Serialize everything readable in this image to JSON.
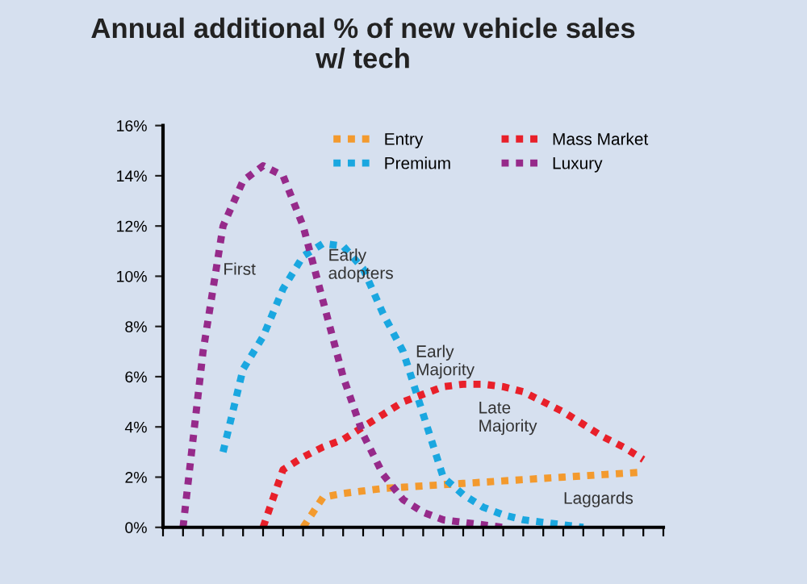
{
  "chart_data": {
    "type": "line",
    "title": "Annual additional % of new vehicle sales\nw/ tech",
    "categories": [
      null,
      null,
      null,
      null,
      null,
      null,
      null,
      null,
      null,
      null,
      null,
      null,
      null,
      null,
      null,
      null,
      null,
      null,
      null,
      null,
      null,
      null,
      null,
      null,
      null,
      null
    ],
    "series": [
      {
        "name": "Entry",
        "color": "#f39a2e",
        "values": [
          null,
          null,
          null,
          null,
          null,
          null,
          null,
          0,
          1.2,
          1.35,
          1.45,
          1.55,
          1.6,
          1.65,
          1.7,
          1.75,
          1.8,
          1.85,
          1.9,
          1.95,
          2.0,
          2.05,
          2.1,
          2.15,
          2.2,
          null
        ]
      },
      {
        "name": "Premium",
        "color": "#1aa7e0",
        "values": [
          null,
          null,
          null,
          3,
          6.3,
          7.6,
          9.5,
          10.8,
          11.3,
          11.2,
          10.3,
          8.5,
          7,
          4.5,
          2,
          1.3,
          0.8,
          0.5,
          0.3,
          0.2,
          0.1,
          0,
          null,
          null,
          null,
          null
        ]
      },
      {
        "name": "Mass Market",
        "color": "#e8202a",
        "values": [
          null,
          null,
          null,
          null,
          null,
          0,
          2.3,
          2.8,
          3.2,
          3.5,
          4,
          4.5,
          5,
          5.3,
          5.6,
          5.7,
          5.7,
          5.6,
          5.4,
          5,
          4.6,
          4.1,
          3.6,
          3.2,
          2.7,
          null
        ]
      },
      {
        "name": "Luxury",
        "color": "#962a8a",
        "values": [
          null,
          0,
          7,
          12,
          13.8,
          14.4,
          14,
          12,
          9,
          6,
          3.7,
          2.1,
          1.1,
          0.6,
          0.3,
          0.2,
          0.1,
          0,
          null,
          null,
          null,
          null,
          null,
          null,
          null,
          null
        ]
      }
    ],
    "annotations": [
      "First",
      "Early\nadopters",
      "Early\nMajority",
      "Late\nMajority",
      "Laggards"
    ],
    "ylim": [
      0,
      16
    ],
    "yticks": [
      {
        "value": 0,
        "label": "0%"
      },
      {
        "value": 2,
        "label": "2%"
      },
      {
        "value": 4,
        "label": "4%"
      },
      {
        "value": 6,
        "label": "6%"
      },
      {
        "value": 8,
        "label": "8%"
      },
      {
        "value": 10,
        "label": "10%"
      },
      {
        "value": 12,
        "label": "12%"
      },
      {
        "value": 14,
        "label": "14%"
      },
      {
        "value": 16,
        "label": "16%"
      }
    ],
    "tick_labels": "y",
    "grid": false,
    "legend": "top right",
    "marker": "none",
    "line_style": "dotted"
  }
}
